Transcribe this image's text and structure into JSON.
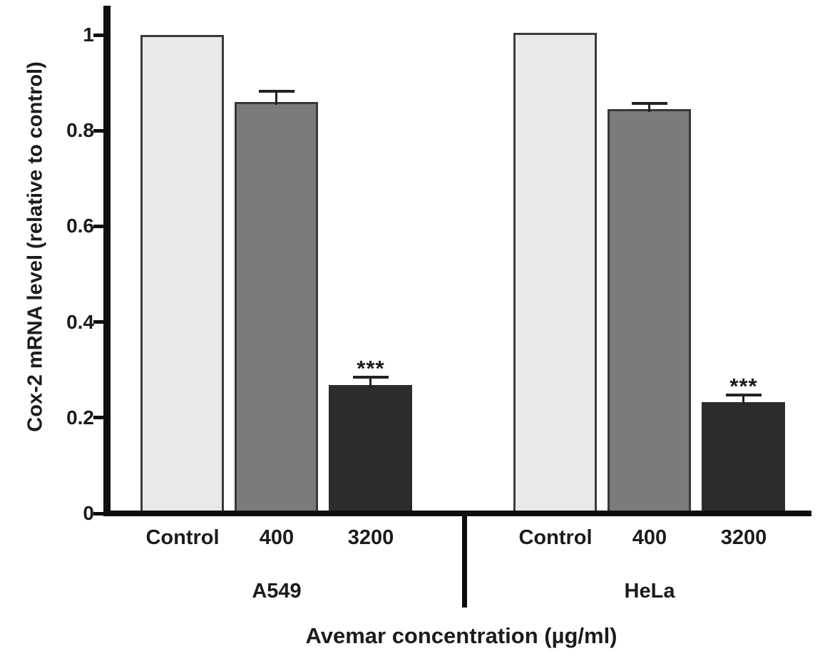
{
  "figure": {
    "background": "#ffffff"
  },
  "chart_data": {
    "type": "bar",
    "title": "",
    "ylabel": "Cox-2 mRNA level (relative to control)",
    "xlabel": "Avemar concentration (µg/ml)",
    "ylim": [
      0,
      1.06
    ],
    "yticks": [
      0,
      0.2,
      0.4,
      0.6,
      0.8,
      1
    ],
    "ytick_labels": [
      "0",
      "0.2",
      "0.4",
      "0.6",
      "0.8",
      "1"
    ],
    "grid": false,
    "legend": null,
    "categories": [
      "Control",
      "400",
      "3200"
    ],
    "groups": [
      {
        "name": "A549",
        "bars": [
          {
            "label": "Control",
            "value": 1.0,
            "error": null,
            "significance": null,
            "fill": "#e9e9e9",
            "border": "#3b3b3b"
          },
          {
            "label": "400",
            "value": 0.86,
            "error": 0.022,
            "significance": null,
            "fill": "#7b7b7b",
            "border": "#383838"
          },
          {
            "label": "3200",
            "value": 0.268,
            "error": 0.016,
            "significance": "***",
            "fill": "#2c2c2c",
            "border": "#2c2c2c"
          }
        ]
      },
      {
        "name": "HeLa",
        "bars": [
          {
            "label": "Control",
            "value": 1.005,
            "error": null,
            "significance": null,
            "fill": "#e9e9e9",
            "border": "#3b3b3b"
          },
          {
            "label": "400",
            "value": 0.845,
            "error": 0.012,
            "significance": null,
            "fill": "#7b7b7b",
            "border": "#383838"
          },
          {
            "label": "3200",
            "value": 0.233,
            "error": 0.014,
            "significance": "***",
            "fill": "#2c2c2c",
            "border": "#2c2c2c"
          }
        ]
      }
    ],
    "colors": {
      "axis": "#0e0e0e",
      "text": "#1c1c1c",
      "error_bar": "#222222"
    }
  }
}
